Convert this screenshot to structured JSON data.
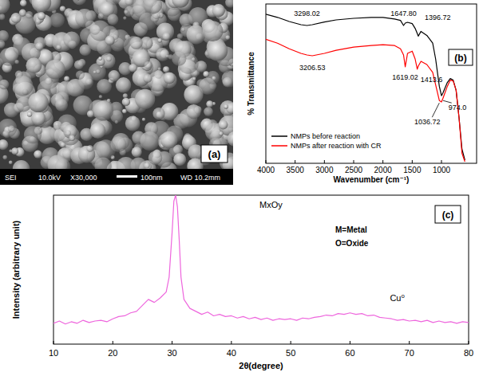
{
  "image": {
    "label": "(a)",
    "info": [
      "SEI",
      "10.0kV",
      "X30,000",
      "100nm",
      "WD 10.2mm"
    ]
  },
  "chart_data": [
    {
      "type": "line",
      "title": "(b)",
      "x_label": "Wavenumber (cm⁻¹)",
      "y_label": "% Transmittance",
      "x": [
        4000,
        3800,
        3600,
        3400,
        3298.02,
        3206.53,
        3000,
        2800,
        2500,
        2200,
        2000,
        1800,
        1700,
        1647.8,
        1619.02,
        1580,
        1500,
        1450,
        1413.6,
        1396.72,
        1350,
        1250,
        1150,
        1100,
        1036.72,
        1000,
        974,
        900,
        850,
        800,
        750,
        700,
        650,
        600
      ],
      "series": [
        {
          "name": "NMPs before reaction",
          "color": "#000000",
          "values": [
            93.6,
            91.6,
            89,
            87,
            86.5,
            87,
            88.7,
            90,
            91,
            91.6,
            91.6,
            90.6,
            89.7,
            86.5,
            88,
            88.5,
            87.7,
            84.7,
            81.5,
            79.8,
            82.8,
            80.3,
            75.4,
            65.5,
            48.3,
            42.4,
            44.3,
            50.7,
            53.2,
            52.2,
            45.8,
            28.6,
            8.9,
            2
          ]
        },
        {
          "name": "NMPs after reaction with CR",
          "color": "#ff0000",
          "values": [
            77.8,
            75.4,
            71.9,
            69,
            68,
            67.5,
            69,
            70.9,
            72.9,
            73.9,
            74.4,
            73.9,
            71.9,
            68,
            60.6,
            69,
            70.4,
            65.5,
            59.1,
            61,
            64,
            62,
            57.1,
            49.3,
            39.4,
            38.5,
            40.9,
            48.3,
            52.2,
            51.7,
            45.8,
            28.6,
            6.4,
            1
          ]
        }
      ],
      "xlim": [
        4000,
        400
      ],
      "xticks": [
        4000,
        3500,
        3000,
        2500,
        2000,
        1500,
        1000
      ],
      "ylim": [
        0,
        100
      ],
      "tick_labels": "x",
      "legend": "lower left",
      "annotations": [
        {
          "x": 3298.02,
          "label": "3298.02",
          "series": 0
        },
        {
          "x": 1647.8,
          "label": "1647.80",
          "series": 0
        },
        {
          "x": 1396.72,
          "label": "1396.72",
          "series": 0
        },
        {
          "x": 3206.53,
          "label": "3206.53",
          "series": 1
        },
        {
          "x": 1619.02,
          "label": "1619.02",
          "series": 1
        },
        {
          "x": 1413.6,
          "label": "1413.6",
          "series": 1
        },
        {
          "x": 1036.72,
          "label": "1036.72",
          "series": 1
        },
        {
          "x": 974,
          "label": "974.0",
          "series": 1
        }
      ]
    },
    {
      "type": "line",
      "title": "(c)",
      "x_label": "2θ(degree)",
      "y_label": "Intensity (arbitrary unit)",
      "x": [
        10,
        11,
        12,
        13,
        14,
        15,
        16,
        17,
        18,
        19,
        20,
        21,
        22,
        23,
        24,
        25,
        26,
        27,
        28,
        29,
        29.5,
        30,
        30.3,
        30.6,
        30.9,
        31.2,
        31.5,
        32,
        33,
        34,
        35,
        36,
        37,
        38,
        39,
        40,
        41,
        42,
        43,
        44,
        45,
        46,
        47,
        48,
        49,
        50,
        51,
        52,
        53,
        54,
        55,
        56,
        57,
        58,
        59,
        60,
        61,
        62,
        63,
        64,
        65,
        66,
        67,
        68,
        69,
        70,
        71,
        72,
        73,
        74,
        75,
        76,
        77,
        78,
        79,
        80
      ],
      "series": [
        {
          "color": "#ee66dd",
          "values": [
            14,
            15.5,
            13.5,
            15,
            14,
            16,
            14.5,
            15.5,
            16,
            15,
            17,
            18.5,
            19,
            21,
            22,
            26,
            30,
            28,
            31,
            35,
            45,
            75,
            96,
            100,
            92,
            70,
            45,
            30,
            24,
            22,
            20,
            21.5,
            19,
            20,
            18.5,
            19,
            17.5,
            18.5,
            17,
            18,
            16.5,
            17.5,
            16,
            17,
            16.5,
            17,
            16,
            17.5,
            17,
            18,
            18.5,
            19.5,
            19,
            20.5,
            20,
            21,
            20,
            20.5,
            19,
            19.5,
            18,
            17.5,
            17,
            16,
            16.5,
            15.5,
            16,
            15,
            16,
            14.5,
            15.5,
            14.5,
            15,
            14,
            15,
            14.5
          ]
        }
      ],
      "xlim": [
        10,
        80
      ],
      "xticks": [
        10,
        20,
        30,
        40,
        50,
        60,
        70,
        80
      ],
      "ylim": [
        0,
        100
      ],
      "tick_labels": "x",
      "annotations": [
        {
          "x": 30.6,
          "label": "MxOy",
          "series": 0
        },
        {
          "x": 60,
          "label": "Cu⁰",
          "series": 0
        }
      ],
      "notes": [
        "M=Metal",
        "O=Oxide"
      ]
    }
  ]
}
